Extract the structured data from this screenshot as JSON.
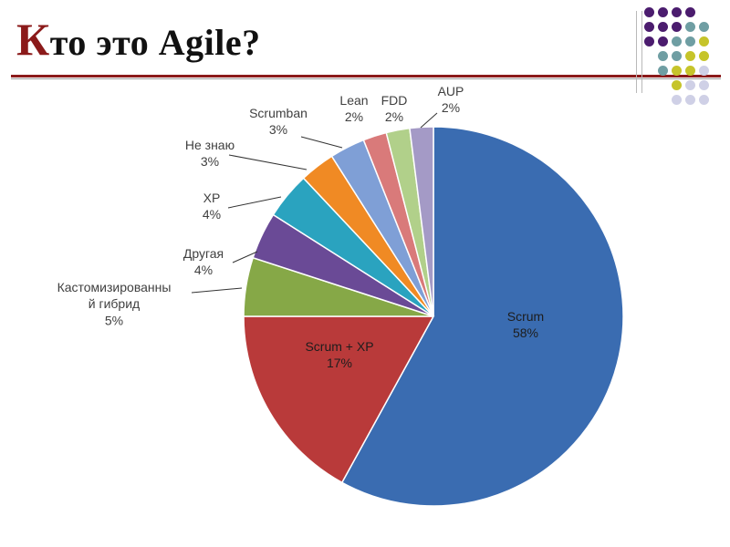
{
  "slide": {
    "title_first": "К",
    "title_rest": "то это Agile?"
  },
  "colors": {
    "accent": "#8b1a1a",
    "deco_purple": "#4b1c6e",
    "deco_teal": "#6f9ea3",
    "deco_lime": "#c6c42a",
    "deco_lavender": "#cfd0e6"
  },
  "deco_dots": [
    [
      "purple",
      "purple",
      "purple",
      "purple",
      ""
    ],
    [
      "purple",
      "purple",
      "purple",
      "teal",
      "teal"
    ],
    [
      "purple",
      "purple",
      "teal",
      "teal",
      "lime"
    ],
    [
      "",
      "teal",
      "teal",
      "lime",
      "lime"
    ],
    [
      "",
      "teal",
      "lime",
      "lime",
      "lavender"
    ],
    [
      "",
      "",
      "lime",
      "lavender",
      "lavender"
    ],
    [
      "",
      "",
      "lavender",
      "lavender",
      "lavender"
    ]
  ],
  "chart_data": {
    "type": "pie",
    "title": "",
    "start_angle_deg": 0,
    "direction": "clockwise",
    "slices": [
      {
        "name": "Scrum",
        "value": 58,
        "label_lines": [
          "Scrum",
          "58%"
        ],
        "color": "#3a6cb1",
        "label_position": "inside"
      },
      {
        "name": "Scrum + XP",
        "value": 17,
        "label_lines": [
          "Scrum + XP",
          "17%"
        ],
        "color": "#b93a3a",
        "label_position": "inside"
      },
      {
        "name": "Кастомизированный гибрид",
        "value": 5,
        "label_lines": [
          "Кастомизированны",
          "й гибрид",
          "5%"
        ],
        "color": "#86a847",
        "label_position": "outside"
      },
      {
        "name": "Другая",
        "value": 4,
        "label_lines": [
          "Другая",
          "4%"
        ],
        "color": "#6a4a96",
        "label_position": "outside"
      },
      {
        "name": "XP",
        "value": 4,
        "label_lines": [
          "XP",
          "4%"
        ],
        "color": "#2aa3bf",
        "label_position": "outside"
      },
      {
        "name": "Не знаю",
        "value": 3,
        "label_lines": [
          "Не знаю",
          "3%"
        ],
        "color": "#f08a24",
        "label_position": "outside"
      },
      {
        "name": "Scrumban",
        "value": 3,
        "label_lines": [
          "Scrumban",
          "3%"
        ],
        "color": "#7f9fd6",
        "label_position": "outside"
      },
      {
        "name": "Lean",
        "value": 2,
        "label_lines": [
          "Lean",
          "2%"
        ],
        "color": "#d97a7a",
        "label_position": "outside"
      },
      {
        "name": "FDD",
        "value": 2,
        "label_lines": [
          "FDD",
          "2%"
        ],
        "color": "#b1d08a",
        "label_position": "outside"
      },
      {
        "name": "AUP",
        "value": 2,
        "label_lines": [
          "AUP",
          "2%"
        ],
        "color": "#a49ac6",
        "label_position": "outside"
      }
    ]
  }
}
